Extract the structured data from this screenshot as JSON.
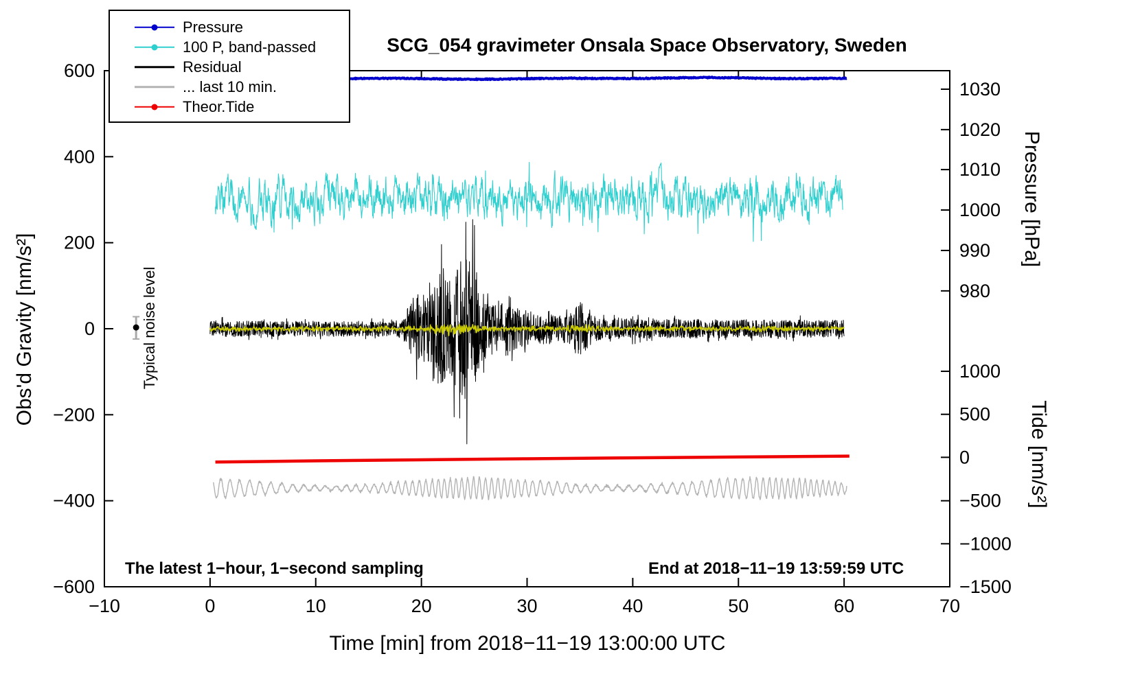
{
  "title": "SCG_054 gravimeter Onsala Space Observatory, Sweden",
  "legend": {
    "items": [
      {
        "label": "Pressure",
        "color": "#0000cc",
        "marker": true
      },
      {
        "label": "100 P, band-passed",
        "color": "#30cfcf",
        "marker": true
      },
      {
        "label": "Residual",
        "color": "#000000",
        "marker": false
      },
      {
        "label": "... last 10 min.",
        "color": "#b3b3b3",
        "marker": false
      },
      {
        "label": "Theor.Tide",
        "color": "#ee0000",
        "marker": true
      }
    ]
  },
  "annotations": {
    "noise_label": "Typical noise level",
    "sampling_note": "The latest 1−hour, 1−second sampling",
    "end_note": "End at 2018−11−19 13:59:59 UTC"
  },
  "chart_data": {
    "type": "line",
    "title": "SCG_054 gravimeter Onsala Space Observatory, Sweden",
    "xlabel": "Time [min] from 2018−11−19 13:00:00 UTC",
    "ylabel_left": "Obs'd Gravity [nm/s²]",
    "ylabel_pressure": "Pressure [hPa]",
    "ylabel_tide": "Tide [nm/s²]",
    "xlim": [
      -10,
      70
    ],
    "ylim_left": [
      -600,
      600
    ],
    "x_ticks": [
      -10,
      0,
      10,
      20,
      30,
      40,
      50,
      60,
      70
    ],
    "y_ticks_left": [
      -600,
      -400,
      -200,
      0,
      200,
      400,
      600
    ],
    "pressure_axis": {
      "tick_values": [
        1030,
        1020,
        1010,
        1000,
        990,
        980
      ],
      "tick_left_units": [
        557,
        463,
        370,
        276,
        182,
        88
      ]
    },
    "tide_axis": {
      "tick_values": [
        1000,
        500,
        0,
        -500,
        -1000,
        -1500
      ],
      "tick_left_units": [
        -99,
        -199,
        -299,
        -400,
        -500,
        -600
      ]
    },
    "series": [
      {
        "name": "Pressure",
        "kind": "pressure",
        "color": "#0000cc",
        "width": 4,
        "x_start": 0,
        "x_end": 60.3,
        "level": 582,
        "level_hpa": 1032.5
      },
      {
        "name": "100 P, band-passed",
        "kind": "bandpassed",
        "color": "#30cfcf",
        "width": 1.1,
        "x_start": 0.5,
        "x_end": 59.9,
        "center": 303,
        "typical_amplitude": 30,
        "extreme_low": 240,
        "extreme_high": 385
      },
      {
        "name": "... last 10 min.",
        "kind": "last10",
        "color": "#b3b3b3",
        "width": 1.4,
        "x_start": 0.3,
        "x_end": 60.3,
        "center": -371,
        "amplitude": 24,
        "period_min": 0.8
      },
      {
        "name": "Theor.Tide",
        "kind": "tide",
        "color": "#ee0000",
        "width": 4.5,
        "points": [
          [
            0.5,
            -310
          ],
          [
            10,
            -307.2
          ],
          [
            20,
            -304.8
          ],
          [
            30,
            -302.4
          ],
          [
            40,
            -300.2
          ],
          [
            50,
            -298.2
          ],
          [
            60.5,
            -296.2
          ]
        ]
      },
      {
        "name": "Residual",
        "kind": "residual",
        "color": "#000000",
        "width": 1,
        "x_start": 0,
        "x_end": 60,
        "center": 0,
        "quiet_amplitude": 22,
        "event_start": 18.5,
        "event_peak_x": 24,
        "event_peak_high": 250,
        "event_peak_low": -270,
        "aftershock_x": 35,
        "aftershock_amplitude": 110
      },
      {
        "name": "Residual band-passed",
        "kind": "yellow",
        "color": "#c9c900",
        "width": 1.7,
        "x_start": 0,
        "x_end": 60,
        "center": 0,
        "amplitude": 7,
        "event_amplitude": 18
      }
    ],
    "noise_marker": {
      "x": -7,
      "y": 3,
      "bar_low": -24,
      "bar_high": 28
    }
  }
}
